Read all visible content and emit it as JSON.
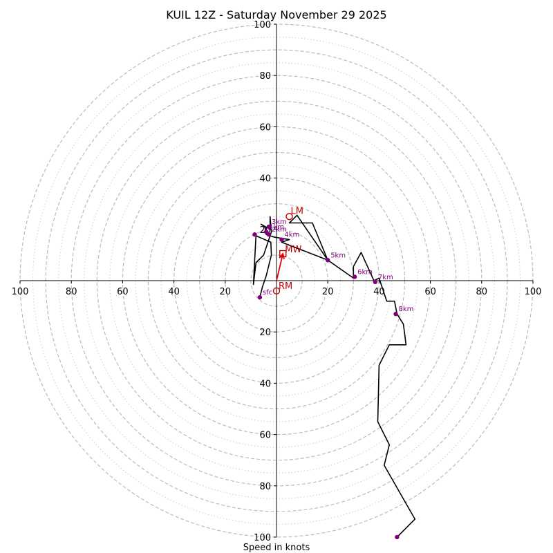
{
  "chart_data": {
    "type": "hodograph",
    "title": "KUIL 12Z - Saturday November 29 2025",
    "xlabel": "Speed in knots",
    "xlim": [
      -100,
      100
    ],
    "ylim": [
      -100,
      100
    ],
    "grid": {
      "dashed_rings": [
        10,
        20,
        30,
        40,
        50,
        60,
        70,
        80,
        90,
        100
      ],
      "dotted_rings": [
        15,
        25,
        35,
        45,
        55,
        65,
        75,
        85,
        95
      ]
    },
    "x_tick_labels": [
      "100",
      "80",
      "60",
      "40",
      "20",
      "20",
      "40",
      "60",
      "80",
      "100"
    ],
    "x_tick_values": [
      -100,
      -80,
      -60,
      -40,
      -20,
      20,
      40,
      60,
      80,
      100
    ],
    "y_tick_labels": [
      "100",
      "80",
      "60",
      "40",
      "20",
      "20",
      "40",
      "60",
      "80",
      "100"
    ],
    "y_tick_values": [
      100,
      80,
      60,
      40,
      20,
      -20,
      -40,
      -60,
      -80,
      -100
    ],
    "colors": {
      "trace": "#000000",
      "height_marker": "#800080",
      "storm_motion": "#c00000",
      "grid": "#bbbbbb"
    },
    "trace": [
      [
        -6.5,
        -6.5
      ],
      [
        -5.5,
        -2.5
      ],
      [
        -4,
        2
      ],
      [
        -2,
        10
      ],
      [
        -2.2,
        15
      ],
      [
        -8,
        17.5
      ],
      [
        -9,
        -1.5
      ],
      [
        -8,
        7
      ],
      [
        -5,
        10
      ],
      [
        -2,
        19
      ],
      [
        -2.5,
        25
      ],
      [
        -2.5,
        20
      ],
      [
        -6,
        22
      ],
      [
        -4.5,
        21
      ],
      [
        -4,
        18
      ],
      [
        -1,
        17
      ],
      [
        5,
        16
      ],
      [
        2,
        15
      ],
      [
        20,
        8
      ],
      [
        14,
        22.5
      ],
      [
        5,
        22.5
      ],
      [
        8,
        25.5
      ],
      [
        20,
        8
      ],
      [
        30,
        1
      ],
      [
        30,
        5.5
      ],
      [
        33,
        11
      ],
      [
        38,
        0
      ],
      [
        40,
        1
      ],
      [
        43,
        -8
      ],
      [
        46,
        -8
      ],
      [
        47,
        -13
      ],
      [
        49.5,
        -17
      ],
      [
        50,
        -21
      ],
      [
        50.5,
        -25
      ],
      [
        44,
        -25
      ],
      [
        40,
        -33
      ],
      [
        39.5,
        -55
      ],
      [
        44,
        -64
      ],
      [
        42,
        -72
      ],
      [
        54,
        -93
      ],
      [
        47,
        -100
      ]
    ],
    "height_markers": [
      {
        "label": "sfc",
        "u": -6.5,
        "v": -6.5
      },
      {
        "label": "1km",
        "u": -4,
        "v": 19
      },
      {
        "label": "2km",
        "u": -3,
        "v": 18
      },
      {
        "label": "3km",
        "u": -3,
        "v": 21
      },
      {
        "label": "4km",
        "u": 2,
        "v": 16
      },
      {
        "label": "5km",
        "u": 20,
        "v": 8
      },
      {
        "label": "6km",
        "u": 30.5,
        "v": 1.5
      },
      {
        "label": "7km",
        "u": 38.5,
        "v": -0.5
      },
      {
        "label": "8km",
        "u": 46.5,
        "v": -13
      },
      {
        "label": "",
        "u": -8.5,
        "v": 18
      },
      {
        "label": "",
        "u": 47,
        "v": -100
      }
    ],
    "storm_motion": {
      "LM": {
        "label": "LM",
        "u": 5,
        "v": 25
      },
      "RM": {
        "label": "RM",
        "u": 0,
        "v": -4
      },
      "MW": {
        "label": "MW",
        "u": 2.5,
        "v": 10.5
      },
      "arrow": {
        "from": [
          0,
          0
        ],
        "to": [
          2.5,
          10.5
        ]
      }
    }
  }
}
